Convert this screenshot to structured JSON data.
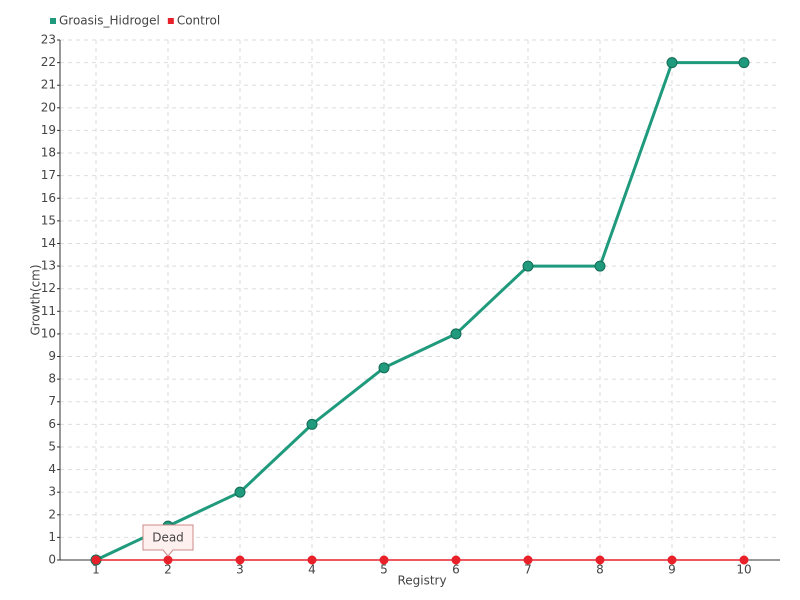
{
  "chart_data": {
    "type": "line",
    "x_label": "Registry",
    "y_label": "Growth(cm)",
    "categories": [
      "1",
      "2",
      "3",
      "4",
      "5",
      "6",
      "7",
      "8",
      "9",
      "10"
    ],
    "series": [
      {
        "name": "Groasis_Hidrogel",
        "color": "#1f9a7c",
        "values": [
          0,
          1.5,
          3,
          6,
          8.5,
          10,
          13,
          13,
          22,
          22
        ]
      },
      {
        "name": "Control",
        "color": "#e8202a",
        "values": [
          0,
          0,
          0,
          0,
          0,
          0,
          0,
          0,
          0,
          0
        ]
      }
    ],
    "annotation": "Dead",
    "ylim": [
      0,
      23
    ],
    "yticks": [
      0,
      1,
      2,
      3,
      4,
      5,
      6,
      7,
      8,
      9,
      10,
      11,
      12,
      13,
      14,
      15,
      16,
      17,
      18,
      19,
      20,
      21,
      22,
      23
    ],
    "grid": true,
    "legend": "top-left"
  }
}
